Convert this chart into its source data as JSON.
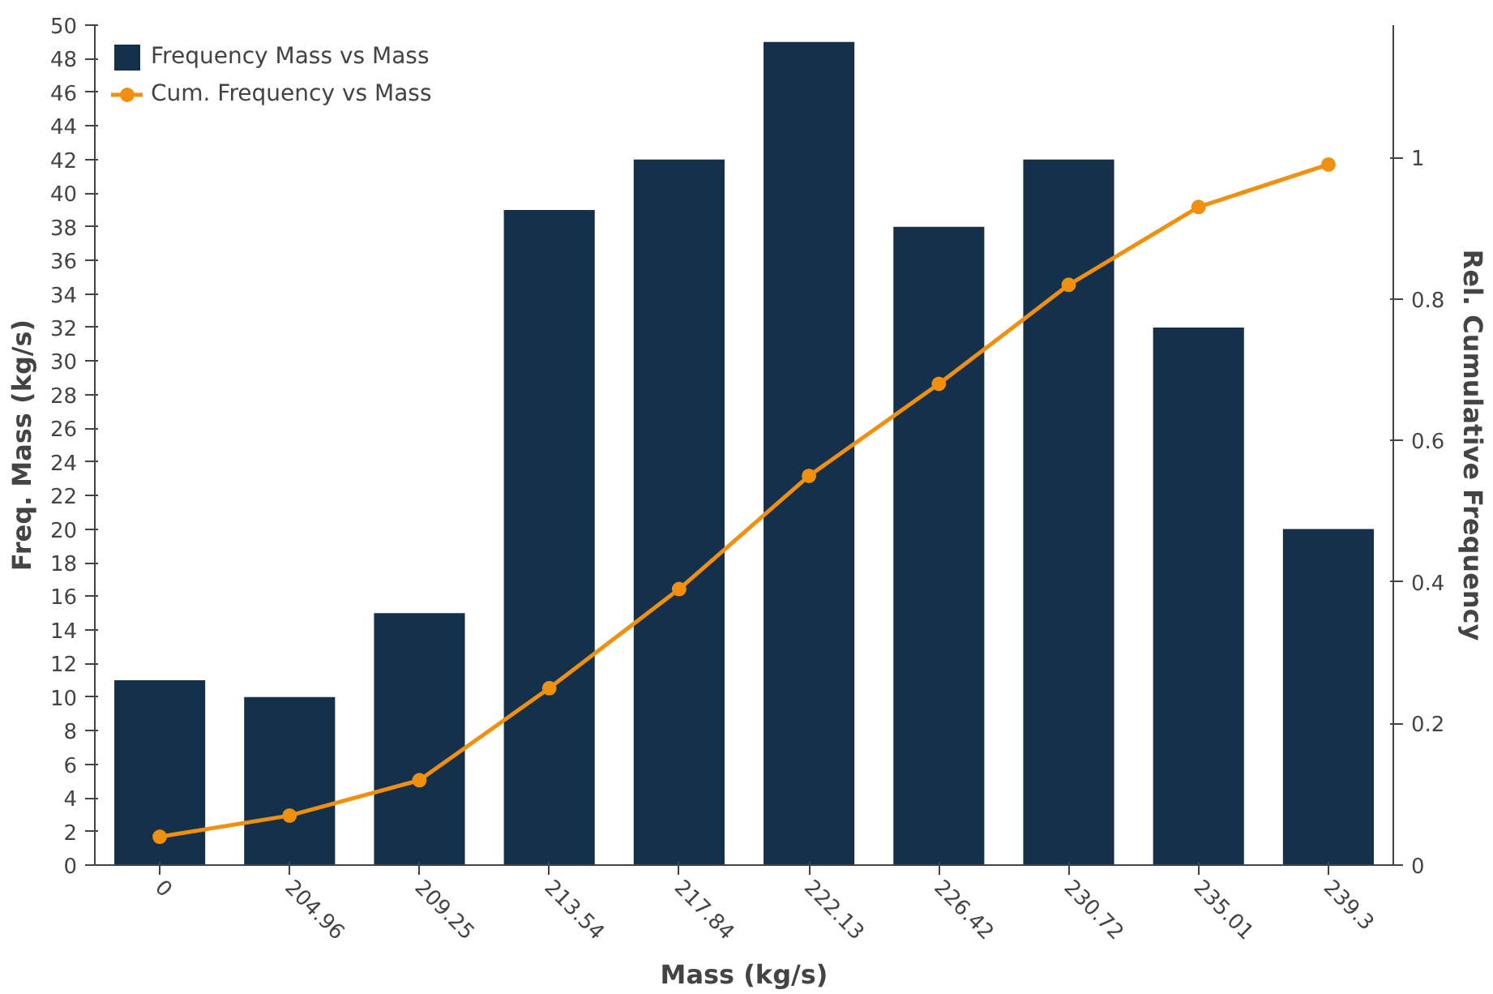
{
  "chart_data": {
    "type": "bar",
    "xlabel": "Mass (kg/s)",
    "ylabel": "Freq. Mass (kg/s)",
    "y2label": "Rel. Cumulative Frequency",
    "categories": [
      "0",
      "204.96",
      "209.25",
      "213.54",
      "217.84",
      "222.13",
      "226.42",
      "230.72",
      "235.01",
      "239.3"
    ],
    "series": [
      {
        "name": "Frequency Mass vs Mass",
        "color": "#15304a",
        "values": [
          11,
          10,
          15,
          39,
          42,
          49,
          38,
          42,
          32,
          20
        ]
      },
      {
        "name": "Cum. Frequency vs Mass",
        "type": "line",
        "axis": "y2",
        "color": "#f0900e",
        "marker": "circle",
        "values": [
          0.04,
          0.07,
          0.12,
          0.25,
          0.39,
          0.55,
          0.68,
          0.82,
          0.93,
          0.99
        ]
      }
    ],
    "ylim": [
      0,
      50
    ],
    "yticks": [
      0,
      2,
      4,
      6,
      8,
      10,
      12,
      14,
      16,
      18,
      20,
      22,
      24,
      26,
      28,
      30,
      32,
      34,
      36,
      38,
      40,
      42,
      44,
      46,
      48,
      50
    ],
    "y2lim": [
      0,
      1.187
    ],
    "y2ticks": [
      0,
      0.2,
      0.4,
      0.6,
      0.8,
      1
    ],
    "grid": false,
    "legend": "top left"
  }
}
